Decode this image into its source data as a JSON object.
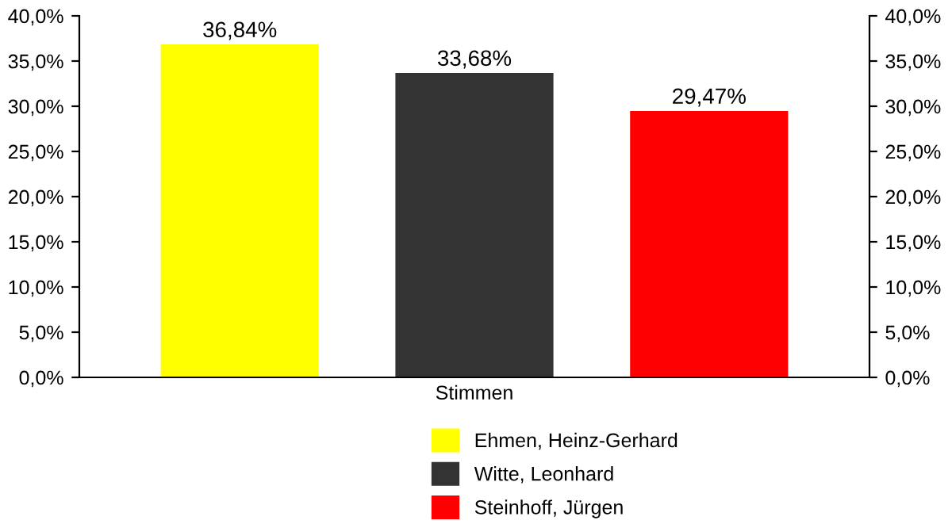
{
  "chart_data": {
    "type": "bar",
    "categories": [
      "Stimmen"
    ],
    "series": [
      {
        "name": "Ehmen, Heinz-Gerhard",
        "color": "#ffff00",
        "values": [
          36.84
        ],
        "value_labels": [
          "36,84%"
        ]
      },
      {
        "name": "Witte, Leonhard",
        "color": "#333333",
        "values": [
          33.68
        ],
        "value_labels": [
          "33,68%"
        ]
      },
      {
        "name": "Steinhoff, Jürgen",
        "color": "#ff0000",
        "values": [
          29.47
        ],
        "value_labels": [
          "29,47%"
        ]
      }
    ],
    "ylim": [
      0,
      40
    ],
    "yticks": [
      {
        "value": 0,
        "label": "0,0%"
      },
      {
        "value": 5,
        "label": "5,0%"
      },
      {
        "value": 10,
        "label": "10,0%"
      },
      {
        "value": 15,
        "label": "15,0%"
      },
      {
        "value": 20,
        "label": "20,0%"
      },
      {
        "value": 25,
        "label": "25,0%"
      },
      {
        "value": 30,
        "label": "30,0%"
      },
      {
        "value": 35,
        "label": "35,0%"
      },
      {
        "value": 40,
        "label": "40,0%"
      }
    ],
    "grid": false,
    "legend": "bottom"
  }
}
